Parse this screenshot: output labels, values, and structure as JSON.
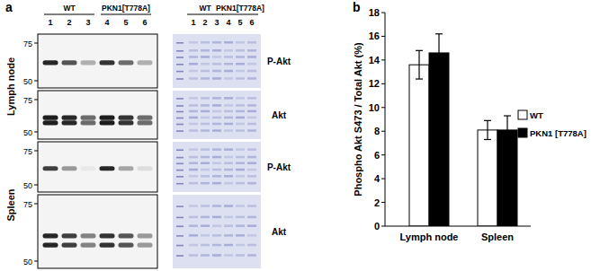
{
  "panel_labels": [
    "a",
    "b"
  ],
  "blots": {
    "groups": [
      {
        "name": "WT",
        "lanes": [
          1,
          2,
          3
        ]
      },
      {
        "name": "PKN1[T778A]",
        "lanes": [
          4,
          5,
          6
        ]
      }
    ],
    "markers_kda": [
      75,
      50
    ],
    "tissues": [
      {
        "name": "Lymph node",
        "rows": [
          {
            "label": "P-Akt",
            "band_kda": [
              62
            ],
            "intensities": [
              0.9,
              0.7,
              0.3,
              0.85,
              0.6,
              0.3
            ]
          },
          {
            "label": "Akt",
            "band_kda": [
              61,
              57
            ],
            "intensities": [
              0.95,
              0.9,
              0.6,
              0.95,
              0.85,
              0.6
            ]
          }
        ]
      },
      {
        "name": "Spleen",
        "rows": [
          {
            "label": "P-Akt",
            "band_kda": [
              62
            ],
            "intensities": [
              0.8,
              0.4,
              0.05,
              0.9,
              0.35,
              0.1
            ]
          },
          {
            "label": "Akt",
            "band_kda": [
              61,
              57
            ],
            "intensities": [
              0.9,
              0.8,
              0.5,
              0.85,
              0.7,
              0.4
            ]
          }
        ]
      }
    ]
  },
  "chart_data": {
    "type": "bar",
    "ylabel": "Phospho Akt S473 / Total Akt (%)",
    "categories": [
      "Lymph node",
      "Spleen"
    ],
    "series": [
      {
        "name": "WT",
        "color": "#ffffff",
        "values": [
          13.6,
          8.1
        ],
        "errors": [
          1.2,
          0.8
        ]
      },
      {
        "name": "PKN1 [T778A]",
        "color": "#000000",
        "values": [
          14.6,
          8.1
        ],
        "errors": [
          1.6,
          1.2
        ]
      }
    ],
    "ylim": [
      0,
      18
    ],
    "yticks": [
      0,
      2,
      4,
      6,
      8,
      10,
      12,
      14,
      16,
      18
    ],
    "grid": false,
    "legend": "right"
  }
}
